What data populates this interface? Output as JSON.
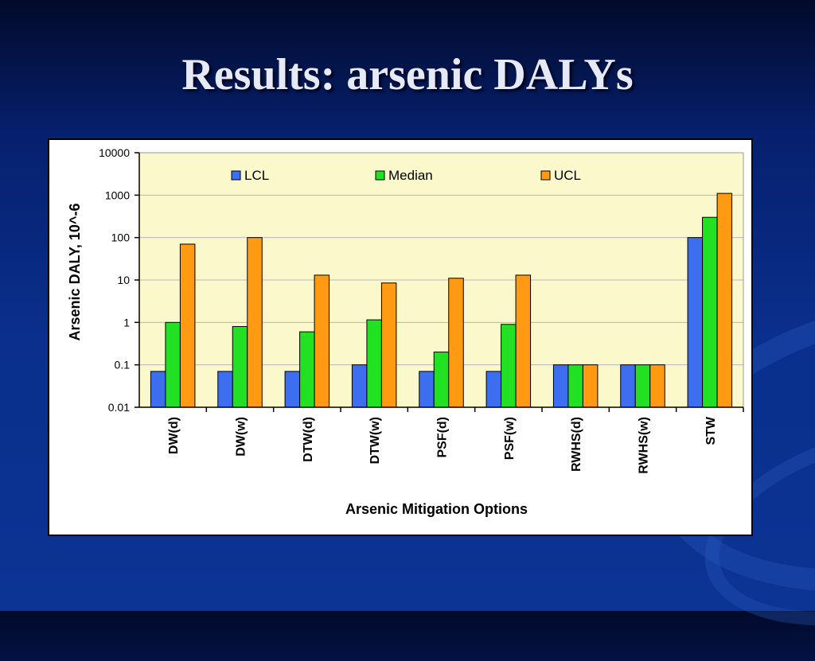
{
  "slide": {
    "title": "Results: arsenic DALYs"
  },
  "colors": {
    "plot_area": "#fbf8cc",
    "LCL": "#3d6ef0",
    "Median": "#22e022",
    "UCL": "#ff9a12"
  },
  "chart_data": {
    "type": "bar",
    "y_scale": "log",
    "ylim": [
      0.01,
      10000
    ],
    "yticks": [
      "10000",
      "1000",
      "100",
      "10",
      "1",
      "0.1",
      "0.01"
    ],
    "ytick_values": [
      10000,
      1000,
      100,
      10,
      1,
      0.1,
      0.01
    ],
    "xlabel": "Arsenic Mitigation Options",
    "ylabel": "Arsenic DALY,  10^-6",
    "legend_position": "top",
    "grid": true,
    "categories": [
      "DW(d)",
      "DW(w)",
      "DTW(d)",
      "DTW(w)",
      "PSF(d)",
      "PSF(w)",
      "RWHS(d)",
      "RWHS(w)",
      "STW"
    ],
    "series": [
      {
        "name": "LCL",
        "values": [
          0.07,
          0.07,
          0.07,
          0.1,
          0.07,
          0.07,
          0.1,
          0.1,
          100
        ]
      },
      {
        "name": "Median",
        "values": [
          1,
          0.8,
          0.6,
          1.15,
          0.2,
          0.9,
          0.1,
          0.1,
          300
        ]
      },
      {
        "name": "UCL",
        "values": [
          70,
          100,
          13,
          8.5,
          11,
          13,
          0.1,
          0.1,
          1100
        ]
      }
    ]
  }
}
